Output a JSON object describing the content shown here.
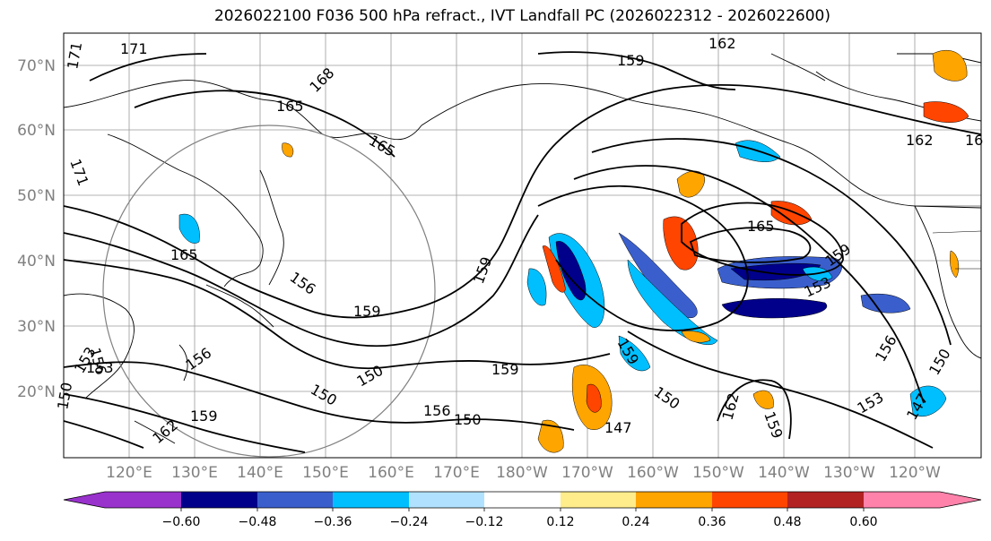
{
  "title": "2026022100 F036 500 hPa refract., IVT Landfall PC (2026022312 - 2026022600)",
  "latitude_labels": [
    "70°N",
    "60°N",
    "50°N",
    "40°N",
    "30°N",
    "20°N"
  ],
  "longitude_labels": [
    "120°E",
    "130°E",
    "140°E",
    "150°E",
    "160°E",
    "170°E",
    "180°W",
    "170°W",
    "160°W",
    "150°W",
    "140°W",
    "130°W",
    "120°W"
  ],
  "contour_labels": [
    "171",
    "171",
    "168",
    "165",
    "165",
    "171",
    "162",
    "159",
    "162",
    "16",
    "165",
    "159",
    "153",
    "165",
    "156",
    "159",
    "159",
    "156",
    "153",
    "150",
    "150",
    "159",
    "156",
    "150",
    "147",
    "159",
    "156",
    "150",
    "153",
    "147",
    "150",
    "162",
    "159",
    "156",
    "153",
    "150",
    "162",
    "159"
  ],
  "colorbar": {
    "tick_labels": [
      "−0.60",
      "−0.48",
      "−0.36",
      "−0.24",
      "−0.12",
      "0.12",
      "0.24",
      "0.36",
      "0.48",
      "0.60"
    ],
    "colors": [
      "#9932cc",
      "#00008b",
      "#3a5fcd",
      "#00bfff",
      "#b0e2ff",
      "#ffffff",
      "#ffec8b",
      "#ffa500",
      "#ff4500",
      "#b22222",
      "#ff82ab"
    ]
  }
}
